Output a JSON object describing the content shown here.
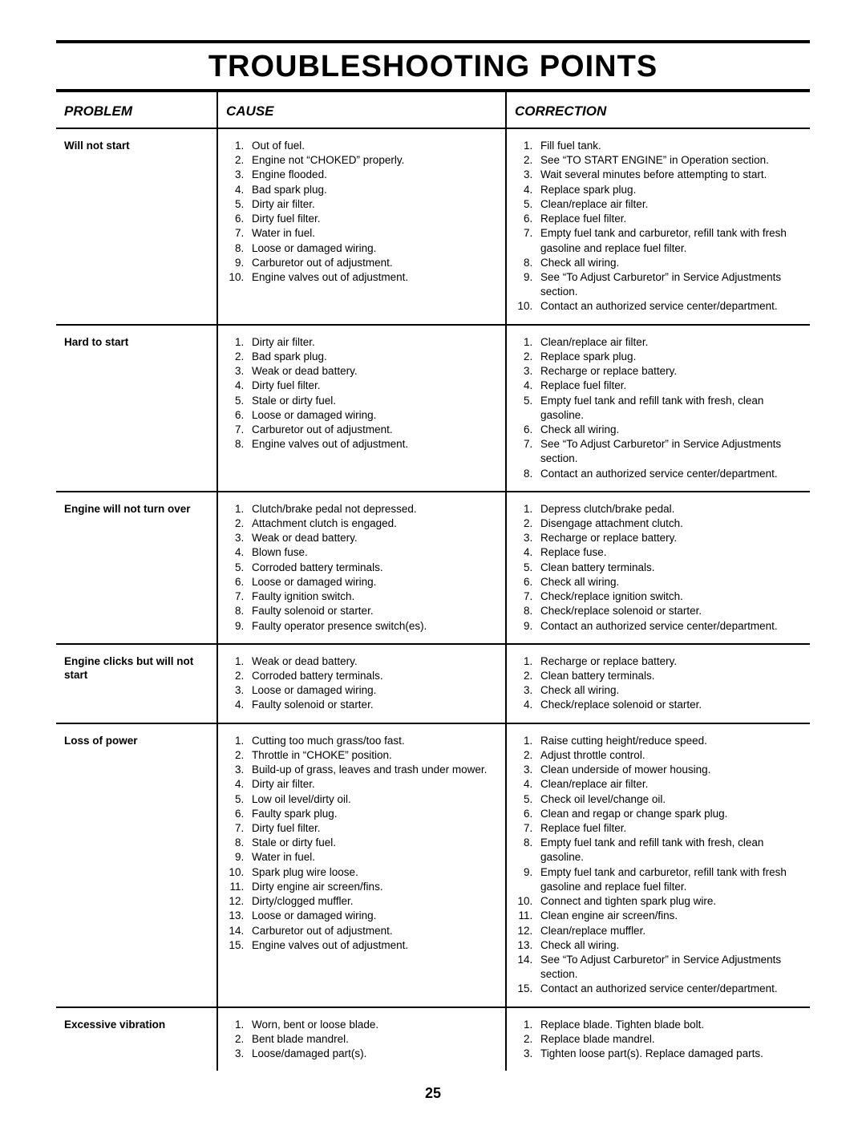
{
  "page": {
    "title": "TROUBLESHOOTING POINTS",
    "page_number": "25",
    "headers": {
      "problem": "PROBLEM",
      "cause": "CAUSE",
      "correction": "CORRECTION"
    },
    "rows": [
      {
        "problem": "Will not start",
        "causes": [
          "Out of fuel.",
          "Engine not “CHOKED” properly.",
          "Engine flooded.",
          "Bad spark plug.",
          "Dirty air filter.",
          "Dirty fuel filter.",
          "Water in fuel.",
          "Loose or damaged wiring.",
          "Carburetor out of adjustment.",
          "Engine valves out of adjustment."
        ],
        "corrections": [
          "Fill fuel tank.",
          "See “TO START ENGINE” in Operation section.",
          "Wait several minutes before attempting to start.",
          "Replace spark plug.",
          "Clean/replace air filter.",
          "Replace fuel filter.",
          "Empty fuel tank and carburetor, refill tank with fresh gasoline and replace fuel filter.",
          "Check all wiring.",
          "See “To Adjust Carburetor” in Service Adjustments section.",
          "Contact an authorized service center/department."
        ]
      },
      {
        "problem": "Hard to start",
        "causes": [
          "Dirty air filter.",
          "Bad spark plug.",
          "Weak or dead battery.",
          "Dirty fuel filter.",
          "Stale or dirty fuel.",
          "Loose or damaged wiring.",
          "Carburetor out of adjustment.",
          "Engine valves out of adjustment."
        ],
        "corrections": [
          "Clean/replace air filter.",
          "Replace spark plug.",
          "Recharge or replace battery.",
          "Replace fuel filter.",
          "Empty fuel tank and refill tank with fresh, clean gasoline.",
          "Check all wiring.",
          "See “To Adjust Carburetor” in Service Adjustments section.",
          "Contact an authorized service center/department."
        ]
      },
      {
        "problem": "Engine will not turn over",
        "causes": [
          "Clutch/brake pedal not depressed.",
          "Attachment clutch is engaged.",
          "Weak or dead battery.",
          "Blown fuse.",
          "Corroded battery terminals.",
          "Loose or damaged wiring.",
          "Faulty ignition switch.",
          "Faulty solenoid or starter.",
          "Faulty operator presence switch(es)."
        ],
        "corrections": [
          "Depress clutch/brake pedal.",
          "Disengage attachment clutch.",
          "Recharge or replace battery.",
          "Replace fuse.",
          "Clean battery terminals.",
          "Check all wiring.",
          "Check/replace ignition switch.",
          "Check/replace solenoid or starter.",
          "Contact an authorized service center/department."
        ]
      },
      {
        "problem": "Engine clicks but will not start",
        "causes": [
          "Weak or dead battery.",
          "Corroded battery terminals.",
          "Loose or damaged wiring.",
          "Faulty solenoid or starter."
        ],
        "corrections": [
          "Recharge or replace battery.",
          "Clean battery terminals.",
          "Check all wiring.",
          "Check/replace solenoid or starter."
        ]
      },
      {
        "problem": "Loss of power",
        "causes": [
          "Cutting too much grass/too fast.",
          "Throttle in “CHOKE” position.",
          "Build-up of grass, leaves and trash under mower.",
          "Dirty air filter.",
          "Low oil level/dirty oil.",
          "Faulty spark plug.",
          "Dirty fuel filter.",
          "Stale or dirty fuel.",
          "Water in fuel.",
          "Spark plug wire loose.",
          "Dirty engine air screen/fins.",
          "Dirty/clogged muffler.",
          "Loose or damaged wiring.",
          "Carburetor out of adjustment.",
          "Engine valves out of adjustment."
        ],
        "corrections": [
          "Raise cutting height/reduce speed.",
          "Adjust throttle control.",
          "Clean underside of mower housing.",
          "Clean/replace air filter.",
          "Check oil level/change oil.",
          "Clean and regap or change spark plug.",
          "Replace fuel filter.",
          "Empty fuel tank and refill tank with fresh, clean gasoline.",
          "Empty fuel tank and carburetor, refill tank with fresh gasoline and replace fuel filter.",
          "Connect and tighten spark plug wire.",
          "Clean engine air screen/fins.",
          "Clean/replace muffler.",
          "Check all wiring.",
          "See “To Adjust Carburetor” in Service Adjustments section.",
          "Contact an authorized service center/department."
        ]
      },
      {
        "problem": "Excessive vibration",
        "causes": [
          "Worn, bent or loose blade.",
          "Bent blade mandrel.",
          "Loose/damaged part(s)."
        ],
        "corrections": [
          "Replace blade.  Tighten blade bolt.",
          "Replace blade mandrel.",
          "Tighten loose part(s).  Replace damaged parts."
        ]
      }
    ]
  }
}
